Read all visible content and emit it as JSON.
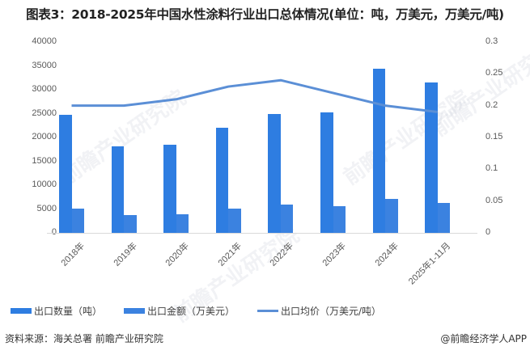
{
  "title": "图表3：2018-2025年中国水性涂料行业出口总体情况(单位：吨，万美元，万美元/吨)",
  "left_axis_ticks": [
    "40000",
    "35000",
    "30000",
    "25000",
    "20000",
    "15000",
    "10000",
    "5000",
    "0"
  ],
  "right_axis_ticks": [
    "0.3",
    "0.25",
    "0.2",
    "0.15",
    "0.1",
    "0.05",
    "0"
  ],
  "x_labels": [
    "2018年",
    "2019年",
    "2020年",
    "2021年",
    "2022年",
    "2023年",
    "2024年",
    "2025年1-11月"
  ],
  "legend": {
    "quantity": "出口数量（吨）",
    "amount": "出口金额（万美元）",
    "price": "出口均价（万美元/吨）"
  },
  "footer": {
    "source": "资料来源：海关总署 前瞻产业研究院",
    "brand": "@前瞻经济学人APP"
  },
  "watermark": "前瞻产业研究院",
  "colors": {
    "quantity": "#2e7de1",
    "amount": "#3b82e0",
    "price": "#5b8fd6"
  },
  "chart_data": {
    "type": "bar",
    "title": "图表3：2018-2025年中国水性涂料行业出口总体情况(单位：吨，万美元，万美元/吨)",
    "categories": [
      "2018年",
      "2019年",
      "2020年",
      "2021年",
      "2022年",
      "2023年",
      "2024年",
      "2025年1-11月"
    ],
    "series": [
      {
        "name": "出口数量（吨）",
        "type": "bar",
        "axis": "left",
        "values": [
          24800,
          18200,
          18400,
          22100,
          25000,
          25300,
          34400,
          31600
        ]
      },
      {
        "name": "出口金额（万美元）",
        "type": "bar",
        "axis": "left",
        "values": [
          5100,
          3700,
          3900,
          5100,
          5900,
          5600,
          7100,
          6200
        ]
      },
      {
        "name": "出口均价（万美元/吨）",
        "type": "line",
        "axis": "right",
        "values": [
          0.2,
          0.2,
          0.21,
          0.23,
          0.24,
          0.22,
          0.2,
          0.19
        ]
      }
    ],
    "ylim_left": [
      0,
      40000
    ],
    "ylim_right": [
      0,
      0.3
    ],
    "xlabel": "",
    "ylabel": "",
    "grid": false,
    "legend_position": "bottom"
  }
}
